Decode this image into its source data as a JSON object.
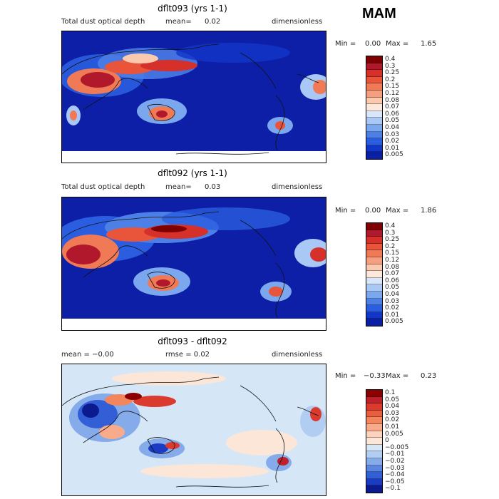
{
  "season": "MAM",
  "panels": [
    {
      "title": "dflt093 (yrs 1-1)",
      "left_text": "Total dust optical depth",
      "mean_label": "mean=",
      "mean_value": "0.02",
      "units": "dimensionless",
      "min_label": "Min =",
      "min_value": "0.00",
      "max_label": "Max =",
      "max_value": "1.65",
      "colorbar": {
        "labels": [
          "0.4",
          "0.3",
          "0.25",
          "0.2",
          "0.15",
          "0.12",
          "0.08",
          "0.07",
          "0.06",
          "0.05",
          "0.04",
          "0.03",
          "0.02",
          "0.01",
          "0.005"
        ],
        "colors": [
          "#7f0000",
          "#b2182b",
          "#d6302a",
          "#e8553a",
          "#f07a55",
          "#f59f80",
          "#fbc9ae",
          "#fde8dc",
          "#d7e6fa",
          "#a9c8f5",
          "#7aa7ee",
          "#4d80e6",
          "#2a5de0",
          "#1236c8",
          "#0a1fa3"
        ]
      }
    },
    {
      "title": "dflt092 (yrs 1-1)",
      "left_text": "Total dust optical depth",
      "mean_label": "mean=",
      "mean_value": "0.03",
      "units": "dimensionless",
      "min_label": "Min =",
      "min_value": "0.00",
      "max_label": "Max =",
      "max_value": "1.86",
      "colorbar": {
        "labels": [
          "0.4",
          "0.3",
          "0.25",
          "0.2",
          "0.15",
          "0.12",
          "0.08",
          "0.07",
          "0.06",
          "0.05",
          "0.04",
          "0.03",
          "0.02",
          "0.01",
          "0.005"
        ],
        "colors": [
          "#7f0000",
          "#b2182b",
          "#d6302a",
          "#e8553a",
          "#f07a55",
          "#f59f80",
          "#fbc9ae",
          "#fde8dc",
          "#d7e6fa",
          "#a9c8f5",
          "#7aa7ee",
          "#4d80e6",
          "#2a5de0",
          "#1236c8",
          "#0a1fa3"
        ]
      }
    },
    {
      "title": "dflt093 - dflt092",
      "left_text": "mean =   −0.00",
      "mid_text": "rmse =   0.02",
      "units": "dimensionless",
      "min_label": "Min =",
      "min_value": "−0.33",
      "max_label": "Max =",
      "max_value": "0.23",
      "colorbar": {
        "labels": [
          "0.1",
          "0.05",
          "0.04",
          "0.03",
          "0.02",
          "0.01",
          "0.005",
          "0",
          "−0.005",
          "−0.01",
          "−0.02",
          "−0.03",
          "−0.04",
          "−0.05",
          "−0.1"
        ],
        "colors": [
          "#8b0000",
          "#c0202a",
          "#da3b2e",
          "#e85f3f",
          "#f3865d",
          "#f8ab8a",
          "#fcd3bd",
          "#fbe6d8",
          "#d5e7f7",
          "#b2cdf2",
          "#86abea",
          "#5a85e0",
          "#335fd6",
          "#1b3cc2",
          "#0c1a8f"
        ]
      }
    }
  ],
  "chart_data": [
    {
      "type": "heatmap",
      "title": "dflt093 (yrs 1-1)",
      "quantity": "Total dust optical depth",
      "units": "dimensionless",
      "mean": 0.02,
      "min": 0.0,
      "max": 1.65,
      "levels": [
        0.005,
        0.01,
        0.02,
        0.03,
        0.04,
        0.05,
        0.06,
        0.07,
        0.08,
        0.12,
        0.15,
        0.2,
        0.25,
        0.3,
        0.4
      ]
    },
    {
      "type": "heatmap",
      "title": "dflt092 (yrs 1-1)",
      "quantity": "Total dust optical depth",
      "units": "dimensionless",
      "mean": 0.03,
      "min": 0.0,
      "max": 1.86,
      "levels": [
        0.005,
        0.01,
        0.02,
        0.03,
        0.04,
        0.05,
        0.06,
        0.07,
        0.08,
        0.12,
        0.15,
        0.2,
        0.25,
        0.3,
        0.4
      ]
    },
    {
      "type": "heatmap",
      "title": "dflt093 - dflt092",
      "units": "dimensionless",
      "mean": -0.0,
      "rmse": 0.02,
      "min": -0.33,
      "max": 0.23,
      "levels": [
        -0.1,
        -0.05,
        -0.04,
        -0.03,
        -0.02,
        -0.01,
        -0.005,
        0,
        0.005,
        0.01,
        0.02,
        0.03,
        0.04,
        0.05,
        0.1
      ]
    }
  ]
}
